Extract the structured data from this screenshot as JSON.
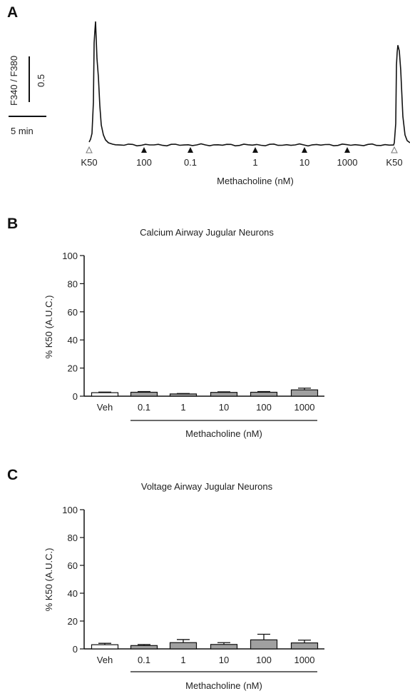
{
  "panels": {
    "a": {
      "letter": "A"
    },
    "b": {
      "letter": "B"
    },
    "c": {
      "letter": "C"
    }
  },
  "chart_data": [
    {
      "type": "line",
      "xlabel": "Methacholine (nM)",
      "scale_bar": {
        "y_label": "F340 / F380",
        "y_value": "0.5",
        "x_value": "5 min"
      },
      "events": [
        {
          "label": "K50",
          "kind": "open"
        },
        {
          "label": "100",
          "kind": "filled"
        },
        {
          "label": "0.1",
          "kind": "filled"
        },
        {
          "label": "1",
          "kind": "filled"
        },
        {
          "label": "10",
          "kind": "filled"
        },
        {
          "label": "1000",
          "kind": "filled"
        },
        {
          "label": "K50",
          "kind": "open"
        }
      ],
      "peaks": [
        {
          "at_event": 0,
          "peak_ratio": 1.85
        },
        {
          "at_event": 6,
          "peak_ratio": 1.5
        }
      ],
      "baseline_ratio": 0.03
    },
    {
      "type": "bar",
      "title": "Calcium Airway Jugular Neurons",
      "ylabel": "% K50 (A.U.C.)",
      "xlabel": "Methacholine (nM)",
      "ylim": [
        0,
        100
      ],
      "yticks": [
        0,
        20,
        40,
        60,
        80,
        100
      ],
      "categories": [
        "Veh",
        "0.1",
        "1",
        "10",
        "100",
        "1000"
      ],
      "values": [
        2.5,
        2.8,
        1.6,
        2.7,
        2.8,
        4.5
      ],
      "errors": [
        0.4,
        0.5,
        0.3,
        0.4,
        0.5,
        1.2
      ],
      "fills": [
        "#ffffff",
        "#a0a0a0",
        "#a0a0a0",
        "#a0a0a0",
        "#a0a0a0",
        "#a0a0a0"
      ]
    },
    {
      "type": "bar",
      "title": "Voltage Airway Jugular Neurons",
      "ylabel": "% K50 (A.U.C.)",
      "xlabel": "Methacholine (nM)",
      "ylim": [
        0,
        100
      ],
      "yticks": [
        0,
        20,
        40,
        60,
        80,
        100
      ],
      "categories": [
        "Veh",
        "0.1",
        "1",
        "10",
        "100",
        "1000"
      ],
      "values": [
        3.0,
        2.4,
        4.5,
        3.2,
        6.5,
        4.3
      ],
      "errors": [
        1.0,
        0.7,
        2.2,
        1.3,
        4.0,
        2.0
      ],
      "fills": [
        "#ffffff",
        "#a0a0a0",
        "#a0a0a0",
        "#a0a0a0",
        "#a0a0a0",
        "#a0a0a0"
      ]
    }
  ]
}
